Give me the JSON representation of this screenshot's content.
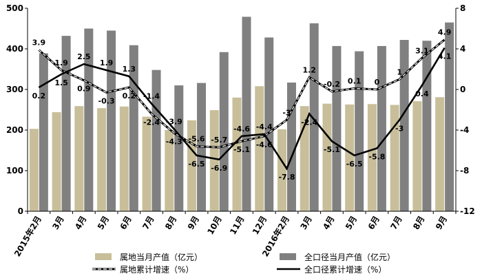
{
  "chart_data": {
    "type": "bar",
    "categories": [
      "2015年2月",
      "3月",
      "4月",
      "5月",
      "6月",
      "7月",
      "8月",
      "9月",
      "10月",
      "11月",
      "12月",
      "2016年2月",
      "3月",
      "4月",
      "5月",
      "6月",
      "7月",
      "8月",
      "9月"
    ],
    "y_left_lim": [
      0,
      500
    ],
    "y_left_ticks": [
      "0",
      "100",
      "200",
      "300",
      "400",
      "500"
    ],
    "y_right_lim": [
      -12,
      8
    ],
    "y_right_ticks": [
      "-12",
      "-8",
      "-4",
      "0",
      "4",
      "8"
    ],
    "grid": false,
    "legend_position": "bottom",
    "series": [
      {
        "name": "属地当月产值（亿元）",
        "kind": "bar",
        "axis": "left",
        "color": "#c8bf9a",
        "values": [
          203,
          244,
          259,
          254,
          258,
          233,
          200,
          224,
          249,
          280,
          308,
          202,
          259,
          265,
          263,
          264,
          262,
          271,
          281
        ]
      },
      {
        "name": "全口径当月产值（亿元）",
        "kind": "bar",
        "axis": "left",
        "color": "#808080",
        "values": [
          389,
          432,
          450,
          445,
          409,
          348,
          310,
          316,
          392,
          479,
          428,
          317,
          463,
          407,
          394,
          407,
          422,
          420,
          465
        ]
      },
      {
        "name": "属地累计增速（%）",
        "kind": "line",
        "axis": "right",
        "style": "dashed",
        "color": "#000000",
        "values": [
          3.9,
          1.9,
          0.9,
          -0.3,
          0.2,
          -2.4,
          -4.3,
          -5.6,
          -5.7,
          -5.1,
          -4.6,
          -3.0,
          1.2,
          -0.2,
          0.1,
          0.0,
          1.0,
          3.1,
          4.9
        ]
      },
      {
        "name": "全口径累计增速（%）",
        "kind": "line",
        "axis": "right",
        "style": "solid",
        "color": "#000000",
        "values": [
          0.2,
          1.5,
          2.5,
          1.9,
          1.3,
          -1.4,
          -3.9,
          -6.5,
          -6.9,
          -4.6,
          -4.4,
          -7.8,
          -2.4,
          -5.1,
          -6.5,
          -5.8,
          -3.0,
          0.4,
          4.1
        ]
      }
    ]
  }
}
